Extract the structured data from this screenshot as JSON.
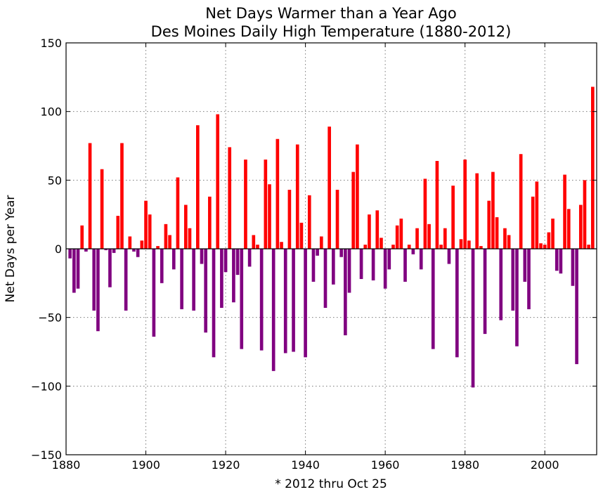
{
  "chart_data": {
    "type": "bar",
    "title": "Net Days Warmer than a Year Ago",
    "subtitle": "Des Moines Daily High Temperature (1880-2012)",
    "xlabel": "* 2012 thru Oct 25",
    "ylabel": "Net Days per Year",
    "xlim": [
      1880,
      2013
    ],
    "ylim": [
      -150,
      150
    ],
    "x_ticks": [
      "1880",
      "1900",
      "1920",
      "1940",
      "1960",
      "1980",
      "2000"
    ],
    "y_ticks": [
      "150",
      "100",
      "50",
      "0",
      "−50",
      "−100",
      "−150"
    ],
    "grid": true,
    "colors": {
      "positive": "#ff0000",
      "negative": "#800080"
    },
    "years": [
      1881,
      1882,
      1883,
      1884,
      1885,
      1886,
      1887,
      1888,
      1889,
      1890,
      1891,
      1892,
      1893,
      1894,
      1895,
      1896,
      1897,
      1898,
      1899,
      1900,
      1901,
      1902,
      1903,
      1904,
      1905,
      1906,
      1907,
      1908,
      1909,
      1910,
      1911,
      1912,
      1913,
      1914,
      1915,
      1916,
      1917,
      1918,
      1919,
      1920,
      1921,
      1922,
      1923,
      1924,
      1925,
      1926,
      1927,
      1928,
      1929,
      1930,
      1931,
      1932,
      1933,
      1934,
      1935,
      1936,
      1937,
      1938,
      1939,
      1940,
      1941,
      1942,
      1943,
      1944,
      1945,
      1946,
      1947,
      1948,
      1949,
      1950,
      1951,
      1952,
      1953,
      1954,
      1955,
      1956,
      1957,
      1958,
      1959,
      1960,
      1961,
      1962,
      1963,
      1964,
      1965,
      1966,
      1967,
      1968,
      1969,
      1970,
      1971,
      1972,
      1973,
      1974,
      1975,
      1976,
      1977,
      1978,
      1979,
      1980,
      1981,
      1982,
      1983,
      1984,
      1985,
      1986,
      1987,
      1988,
      1989,
      1990,
      1991,
      1992,
      1993,
      1994,
      1995,
      1996,
      1997,
      1998,
      1999,
      2000,
      2001,
      2002,
      2003,
      2004,
      2005,
      2006,
      2007,
      2008,
      2009,
      2010,
      2011,
      2012
    ],
    "values": [
      -7,
      -32,
      -29,
      17,
      -2,
      77,
      -45,
      -60,
      58,
      -1,
      -28,
      -3,
      24,
      77,
      -45,
      9,
      -2,
      -6,
      6,
      35,
      25,
      -64,
      2,
      -25,
      18,
      10,
      -15,
      52,
      -44,
      32,
      15,
      -45,
      90,
      -11,
      -61,
      38,
      -79,
      98,
      -43,
      -17,
      74,
      -39,
      -19,
      -73,
      65,
      -13,
      10,
      3,
      -74,
      65,
      47,
      -89,
      80,
      5,
      -76,
      43,
      -75,
      76,
      19,
      -79,
      39,
      -24,
      -5,
      9,
      -43,
      89,
      -26,
      43,
      -6,
      -63,
      -32,
      56,
      76,
      -22,
      3,
      25,
      -23,
      28,
      8,
      -29,
      -15,
      3,
      17,
      22,
      -24,
      3,
      -4,
      15,
      -15,
      51,
      18,
      -73,
      64,
      3,
      15,
      -11,
      46,
      -79,
      7,
      65,
      6,
      -101,
      55,
      2,
      -62,
      35,
      56,
      23,
      -52,
      15,
      10,
      -45,
      -71,
      69,
      -24,
      -44,
      38,
      49,
      4,
      3,
      12,
      22,
      -16,
      -18,
      54,
      29,
      -27,
      -84,
      32,
      50,
      3,
      118
    ]
  }
}
